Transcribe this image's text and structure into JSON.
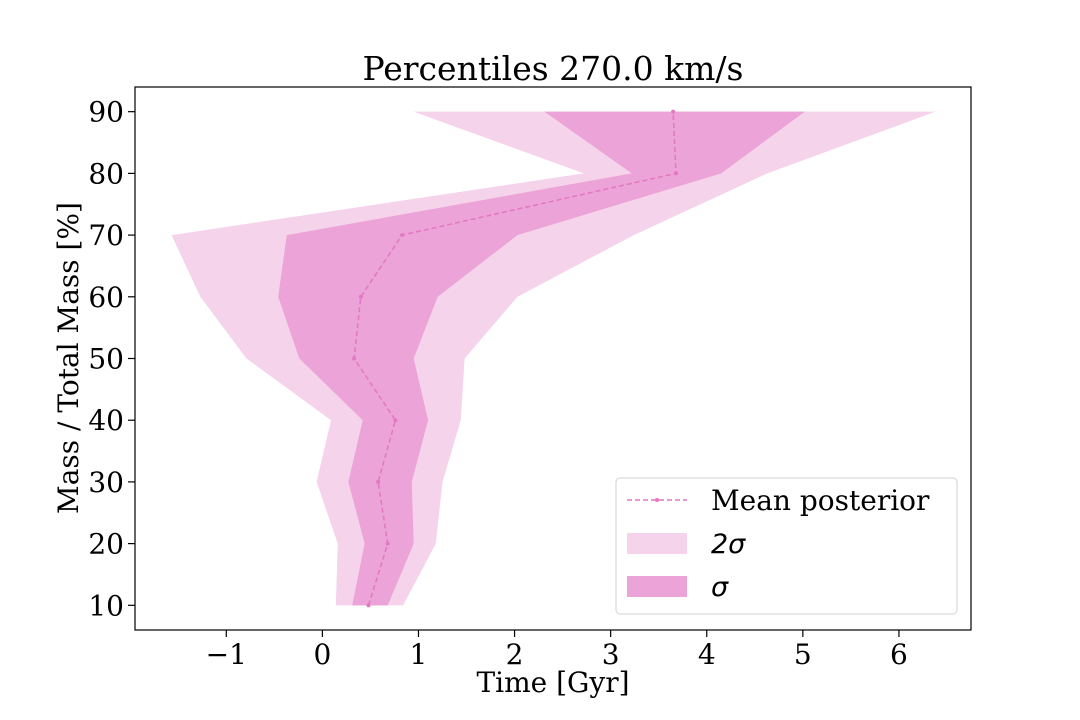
{
  "chart_data": {
    "type": "area",
    "title": "Percentiles 270.0 km/s",
    "xlabel": "Time [Gyr]",
    "ylabel": "Mass / Total Mass [%]",
    "xlim": [
      -1.95,
      6.75
    ],
    "ylim": [
      6,
      94
    ],
    "xticks": [
      -1,
      0,
      1,
      2,
      3,
      4,
      5,
      6
    ],
    "xtick_labels": [
      "−1",
      "0",
      "1",
      "2",
      "3",
      "4",
      "5",
      "6"
    ],
    "yticks": [
      10,
      20,
      30,
      40,
      50,
      60,
      70,
      80,
      90
    ],
    "ytick_labels": [
      "10",
      "20",
      "30",
      "40",
      "50",
      "60",
      "70",
      "80",
      "90"
    ],
    "grid": false,
    "legend_position": "bottom-right",
    "y": [
      10,
      20,
      30,
      40,
      50,
      60,
      70,
      80,
      90
    ],
    "series": [
      {
        "name": "Mean posterior",
        "kind": "line",
        "color": "#e377c2",
        "x": [
          0.48,
          0.68,
          0.58,
          0.76,
          0.33,
          0.4,
          0.83,
          3.68,
          3.65
        ]
      },
      {
        "name": "2σ",
        "kind": "band",
        "color": "#f5d3ea",
        "lower": [
          0.14,
          0.16,
          -0.06,
          0.09,
          -0.79,
          -1.27,
          -1.57,
          2.72,
          0.95
        ],
        "upper": [
          0.84,
          1.18,
          1.25,
          1.44,
          1.48,
          2.03,
          3.24,
          4.63,
          6.38
        ]
      },
      {
        "name": "σ",
        "kind": "band",
        "color": "#eca3d7",
        "lower": [
          0.31,
          0.44,
          0.27,
          0.42,
          -0.24,
          -0.46,
          -0.37,
          3.22,
          2.31
        ],
        "upper": [
          0.68,
          0.95,
          0.93,
          1.1,
          0.95,
          1.2,
          2.03,
          4.15,
          5.02
        ]
      }
    ]
  }
}
